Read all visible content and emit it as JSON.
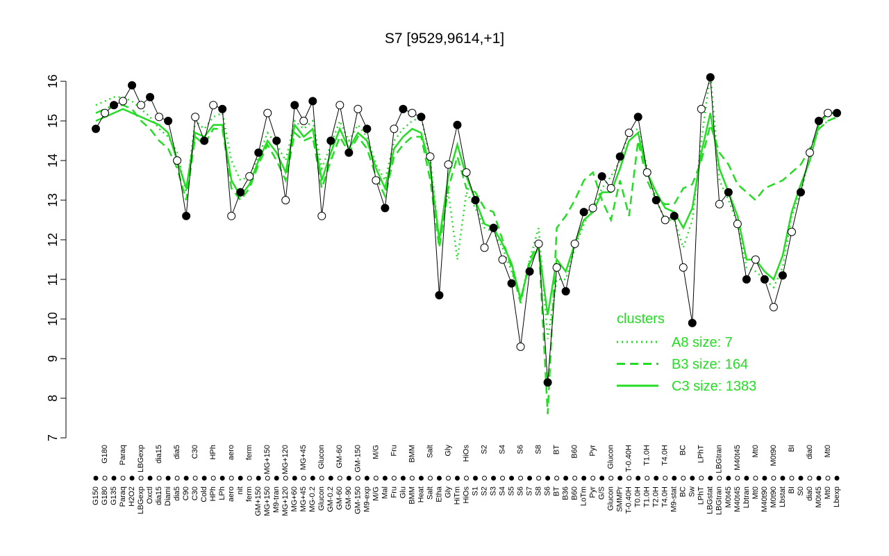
{
  "chart_data": {
    "type": "line",
    "title": "S7 [9529,9614,+1]",
    "categories": [
      "G150",
      "G180",
      "G135",
      "Paraq",
      "H2O2",
      "LBGexp",
      "Oxctl",
      "dia15",
      "Diami",
      "dia5",
      "C90",
      "C30",
      "Cold",
      "HPh",
      "LPh",
      "aero",
      "nit",
      "ferm",
      "GM+150",
      "MG+150",
      "M9-tran",
      "MG+120",
      "MG+60",
      "MG+45",
      "MG-0.2",
      "Glucon",
      "GM-0.2",
      "GM-60",
      "GM-90",
      "GM-150",
      "M9-exp",
      "M/G",
      "Mal",
      "Fru",
      "Glu",
      "BMM",
      "Heat",
      "Salt",
      "Etha",
      "Gly",
      "HiTm",
      "HiOs",
      "S1",
      "S2",
      "S3",
      "S4",
      "S5",
      "S6",
      "S7",
      "S8",
      "S6",
      "BT",
      "B36",
      "B60",
      "LoTm",
      "Pyr",
      "G/S",
      "Glucon",
      "SMMPr",
      "T-0.40H",
      "T0.0H",
      "T1.0H",
      "T2.0H",
      "T4.0H",
      "M9-stat",
      "BC",
      "Sw",
      "LPhT",
      "LBGstat",
      "LBGtran",
      "M0t45",
      "M40t45",
      "Lbtran",
      "Mt0",
      "M40t90",
      "M0t90",
      "Lbstat",
      "BI",
      "S0",
      "dia0",
      "M0t45",
      "Mt0",
      "Lbexp"
    ],
    "values": [
      14.8,
      15.2,
      15.4,
      15.5,
      15.9,
      15.4,
      15.6,
      15.1,
      15.0,
      14.0,
      12.6,
      15.1,
      14.5,
      15.4,
      15.3,
      12.6,
      13.2,
      13.6,
      14.2,
      15.2,
      14.5,
      13.0,
      15.4,
      15.0,
      15.5,
      12.6,
      14.5,
      15.4,
      14.2,
      15.3,
      14.8,
      13.5,
      12.8,
      14.8,
      15.3,
      15.2,
      15.1,
      14.1,
      10.6,
      13.9,
      14.9,
      13.7,
      13.0,
      11.8,
      12.3,
      11.5,
      10.9,
      9.3,
      11.2,
      11.9,
      8.4,
      11.3,
      10.7,
      11.9,
      12.7,
      12.8,
      13.6,
      13.3,
      14.1,
      14.7,
      15.1,
      13.7,
      13.0,
      12.5,
      12.6,
      11.3,
      9.9,
      15.3,
      16.1,
      12.9,
      13.2,
      12.4,
      11.0,
      11.5,
      11.0,
      10.3,
      11.1,
      12.2,
      13.2,
      14.2,
      15.0,
      15.2,
      15.2
    ],
    "point_color": "#000000",
    "series": [
      {
        "name": "A8 size: 7",
        "color": "#22dd22",
        "style": "dotted",
        "values": [
          15.4,
          15.5,
          15.6,
          15.6,
          15.5,
          15.3,
          15.1,
          14.8,
          14.6,
          14.2,
          13.2,
          15.0,
          14.8,
          15.1,
          15.2,
          14.0,
          13.5,
          13.6,
          14.1,
          14.7,
          14.4,
          14.0,
          15.0,
          14.8,
          15.0,
          13.8,
          14.4,
          15.0,
          14.5,
          14.9,
          14.6,
          13.9,
          13.5,
          14.5,
          14.8,
          15.0,
          15.1,
          14.0,
          12.0,
          13.2,
          11.5,
          13.2,
          12.8,
          12.3,
          12.2,
          11.8,
          11.2,
          10.5,
          11.5,
          12.3,
          9.5,
          11.0,
          11.0,
          11.8,
          12.4,
          12.8,
          13.3,
          13.6,
          14.0,
          14.7,
          14.8,
          13.8,
          13.0,
          12.5,
          12.5,
          11.8,
          12.5,
          14.5,
          16.2,
          13.5,
          13.0,
          12.4,
          11.3,
          11.2,
          11.0,
          10.8,
          11.3,
          12.6,
          13.2,
          14.1,
          14.8,
          15.0,
          15.1
        ]
      },
      {
        "name": "B3 size: 164",
        "color": "#22dd22",
        "style": "dashed",
        "values": [
          15.2,
          15.3,
          15.4,
          15.4,
          15.3,
          15.0,
          14.8,
          14.5,
          14.3,
          13.8,
          13.0,
          14.6,
          14.4,
          14.8,
          14.8,
          13.3,
          13.0,
          13.3,
          13.9,
          14.4,
          14.0,
          13.5,
          14.7,
          14.5,
          14.6,
          13.3,
          14.0,
          14.6,
          14.2,
          14.6,
          14.3,
          13.6,
          13.1,
          14.1,
          14.4,
          14.6,
          14.6,
          13.5,
          11.8,
          13.3,
          14.1,
          13.3,
          13.2,
          12.8,
          12.7,
          12.0,
          11.3,
          10.4,
          11.5,
          11.9,
          7.6,
          12.3,
          12.6,
          13.0,
          13.5,
          13.7,
          13.0,
          12.5,
          13.5,
          12.6,
          14.5,
          13.5,
          13.0,
          12.9,
          12.9,
          13.3,
          13.4,
          14.0,
          14.9,
          14.2,
          13.9,
          13.4,
          13.2,
          13.0,
          13.3,
          13.4,
          13.5,
          13.7,
          13.9,
          14.3,
          14.8,
          15.0,
          15.1
        ]
      },
      {
        "name": "C3 size: 1383",
        "color": "#22dd22",
        "style": "solid",
        "values": [
          15.0,
          15.1,
          15.2,
          15.3,
          15.2,
          15.1,
          15.0,
          14.9,
          14.7,
          14.0,
          13.3,
          14.7,
          14.6,
          14.9,
          14.9,
          13.5,
          13.1,
          13.4,
          14.0,
          14.5,
          14.2,
          13.7,
          14.9,
          14.6,
          14.8,
          13.5,
          14.2,
          14.8,
          14.3,
          14.7,
          14.5,
          13.8,
          13.3,
          14.3,
          14.6,
          14.8,
          14.7,
          13.8,
          12.0,
          13.6,
          14.4,
          13.6,
          13.0,
          12.4,
          12.3,
          11.9,
          11.4,
          10.5,
          11.4,
          11.8,
          10.1,
          11.5,
          11.2,
          11.9,
          12.5,
          12.7,
          13.2,
          13.2,
          13.8,
          14.5,
          14.7,
          13.7,
          13.2,
          12.8,
          12.7,
          12.3,
          12.8,
          14.2,
          15.2,
          13.8,
          13.2,
          12.6,
          11.5,
          11.5,
          11.2,
          11.0,
          11.6,
          12.7,
          13.4,
          14.0,
          14.9,
          15.2,
          15.2
        ]
      }
    ],
    "legend_title": "clusters",
    "ylim": [
      7,
      16
    ],
    "yticks": [
      7,
      8,
      9,
      10,
      11,
      12,
      13,
      14,
      15,
      16
    ]
  }
}
